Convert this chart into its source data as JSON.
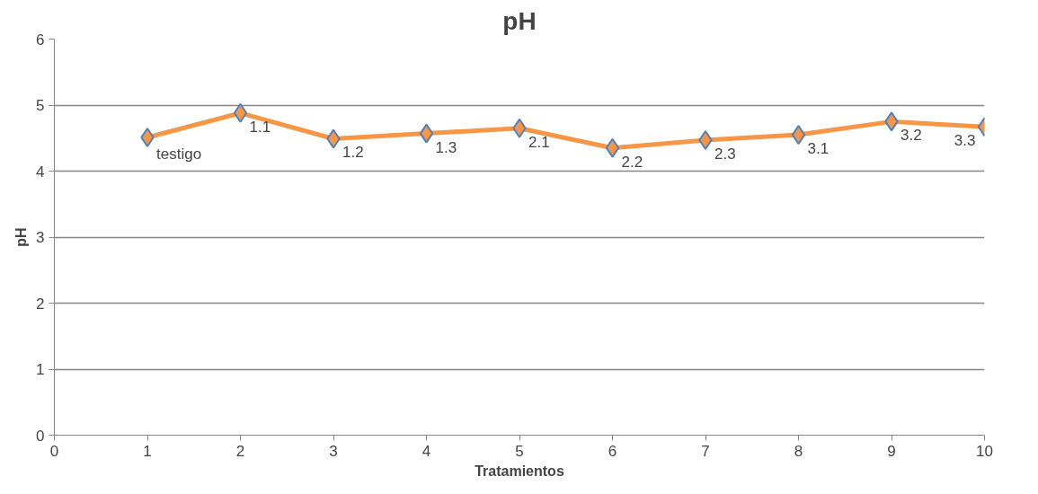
{
  "chart_data": {
    "type": "line",
    "title": "pH",
    "xlabel": "Tratamientos",
    "ylabel": "pH",
    "x": [
      1,
      2,
      3,
      4,
      5,
      6,
      7,
      8,
      9,
      10
    ],
    "series": [
      {
        "color": "#f79646",
        "values": [
          4.51,
          4.88,
          4.49,
          4.57,
          4.65,
          4.35,
          4.47,
          4.55,
          4.75,
          4.67
        ]
      }
    ],
    "annotations": [
      {
        "text": "testigo",
        "x": 1,
        "y": 4.51
      },
      {
        "text": "1.1",
        "x": 2,
        "y": 4.88
      },
      {
        "text": "1.2",
        "x": 3,
        "y": 4.49
      },
      {
        "text": "1.3",
        "x": 4,
        "y": 4.57
      },
      {
        "text": "2.1",
        "x": 5,
        "y": 4.65
      },
      {
        "text": "2.2",
        "x": 6,
        "y": 4.35
      },
      {
        "text": "2.3",
        "x": 7,
        "y": 4.47
      },
      {
        "text": "3.1",
        "x": 8,
        "y": 4.55
      },
      {
        "text": "3.2",
        "x": 9,
        "y": 4.75
      },
      {
        "text": "3.3",
        "x": 10,
        "y": 4.67
      }
    ],
    "xlim": [
      0,
      10
    ],
    "xticks": [
      0,
      1,
      2,
      3,
      4,
      5,
      6,
      7,
      8,
      9,
      10
    ],
    "ylim": [
      0,
      6
    ],
    "yticks": [
      0,
      1,
      2,
      3,
      4,
      5,
      6
    ],
    "grid": "y",
    "marker": "diamond",
    "line_style": "solid"
  }
}
